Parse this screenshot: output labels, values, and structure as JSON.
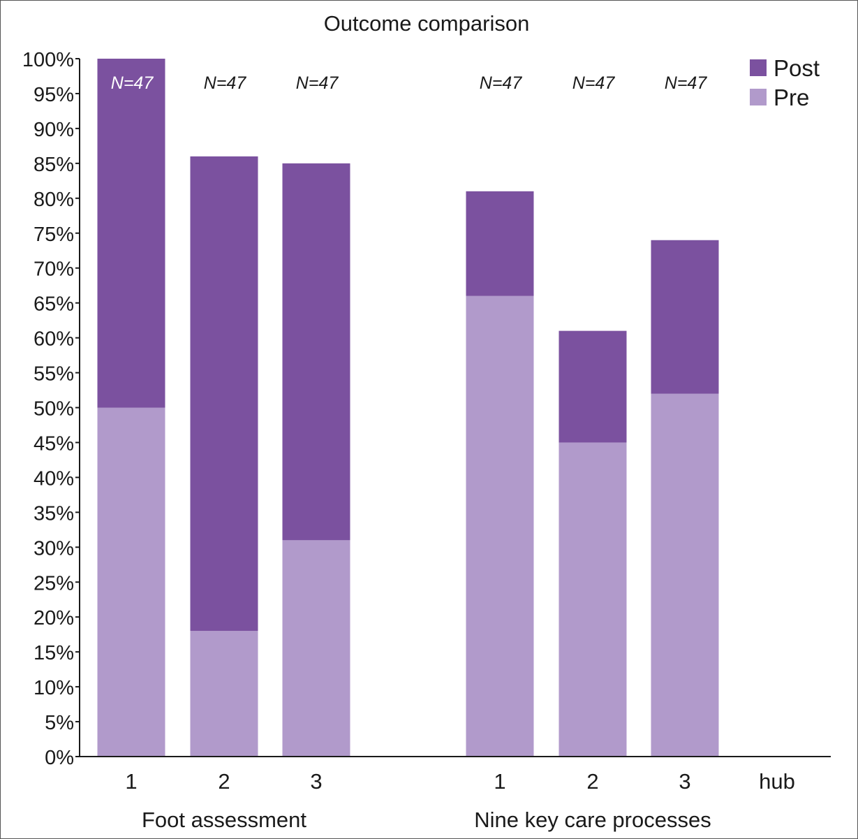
{
  "chart_data": {
    "type": "bar",
    "stacked": true,
    "title": "Outcome comparison",
    "xlabel": "",
    "ylabel": "",
    "ylim": [
      0,
      100
    ],
    "yticks": [
      "0%",
      "5%",
      "10%",
      "15%",
      "20%",
      "25%",
      "30%",
      "35%",
      "40%",
      "45%",
      "50%",
      "55%",
      "60%",
      "65%",
      "70%",
      "75%",
      "80%",
      "85%",
      "90%",
      "95%",
      "100%"
    ],
    "grid": false,
    "legend_position": "top-right",
    "groups": [
      {
        "label": "Foot assessment",
        "categories": [
          "1",
          "2",
          "3"
        ]
      },
      {
        "label": "Nine key care processes",
        "categories": [
          "1",
          "2",
          "3"
        ]
      }
    ],
    "extra_tick": "hub",
    "series": [
      {
        "name": "Pre",
        "color": "#b19acb",
        "values": [
          50,
          18,
          31,
          66,
          45,
          52
        ]
      },
      {
        "name": "Post",
        "color": "#7b519f",
        "values": [
          50,
          68,
          54,
          15,
          16,
          22
        ]
      }
    ],
    "annotations": [
      "N=47",
      "N=47",
      "N=47",
      "N=47",
      "N=47",
      "N=47"
    ]
  }
}
